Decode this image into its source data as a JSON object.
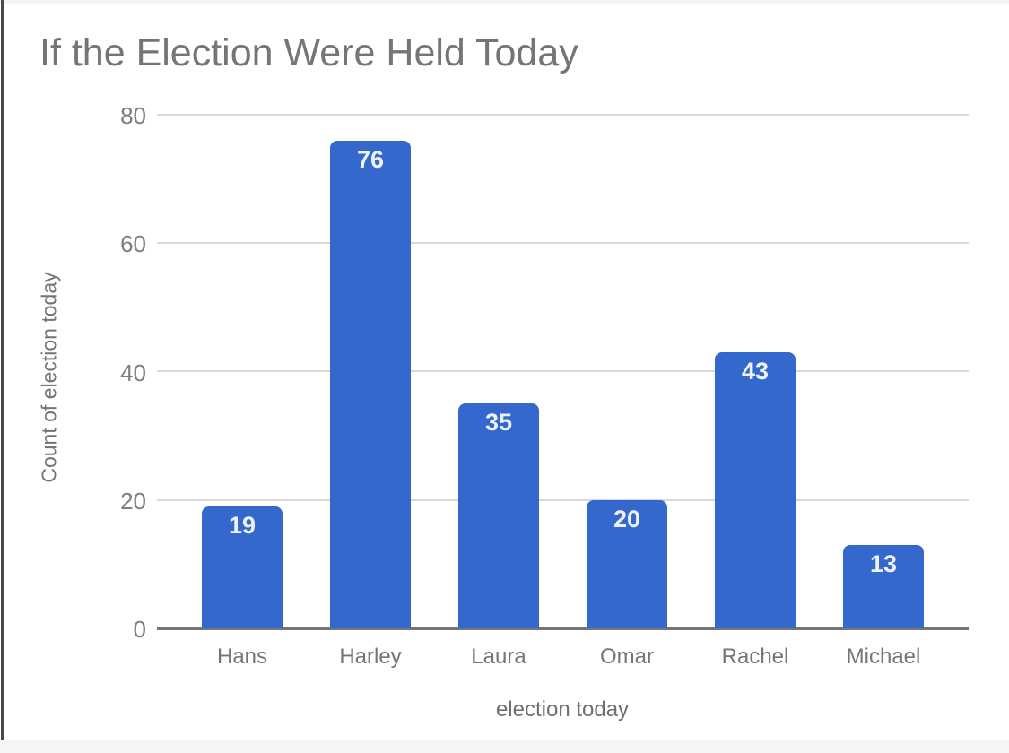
{
  "chart_data": {
    "type": "bar",
    "title": "If the Election Were Held Today",
    "xlabel": "election today",
    "ylabel": "Count of election today",
    "categories": [
      "Hans",
      "Harley",
      "Laura",
      "Omar",
      "Rachel",
      "Michael"
    ],
    "values": [
      19,
      76,
      35,
      20,
      43,
      13
    ],
    "ylim": [
      0,
      80
    ],
    "yticks": [
      0,
      20,
      40,
      60,
      80
    ],
    "grid": true,
    "legend_position": "none",
    "colors": {
      "bar": "#3568cd",
      "bar_value_label": "#edf2fc",
      "title_text": "#757575",
      "axis_text": "#7e7e7e",
      "gridline": "#d8d8d8",
      "baseline": "#757575"
    }
  }
}
